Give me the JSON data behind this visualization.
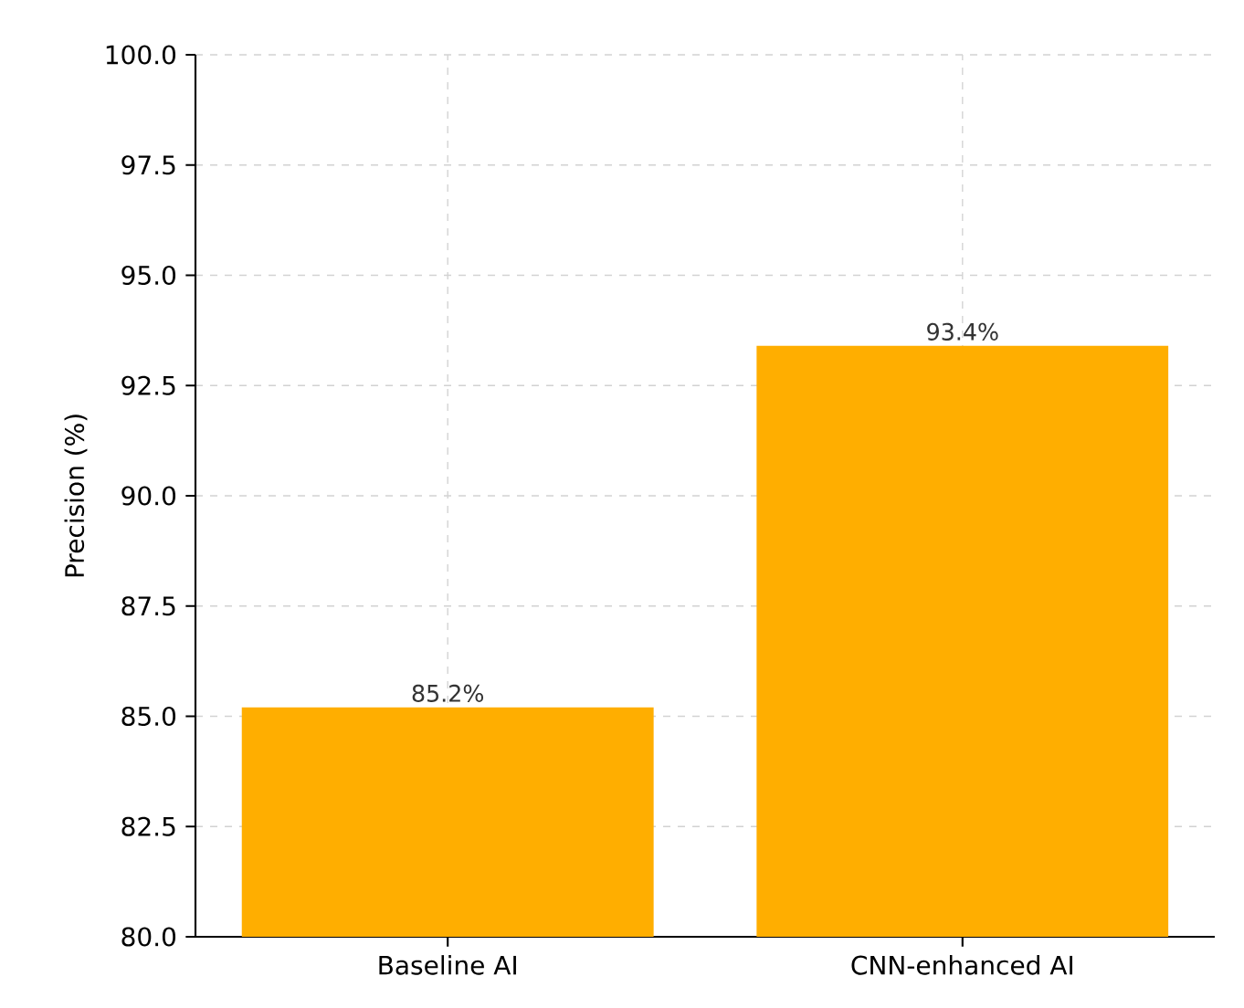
{
  "chart_data": {
    "type": "bar",
    "ylabel": "Precision (%)",
    "categories": [
      "Baseline AI",
      "CNN-enhanced AI"
    ],
    "values": [
      85.2,
      93.4
    ],
    "color": "#ffae00",
    "value_labels": [
      "85.2%",
      "93.4%"
    ],
    "ylim": [
      80,
      100
    ],
    "yticks": [
      {
        "value": 80,
        "label": "80.0"
      },
      {
        "value": 82.5,
        "label": "82.5"
      },
      {
        "value": 85,
        "label": "85.0"
      },
      {
        "value": 87.5,
        "label": "87.5"
      },
      {
        "value": 90,
        "label": "90.0"
      },
      {
        "value": 92.5,
        "label": "92.5"
      },
      {
        "value": 95,
        "label": "95.0"
      },
      {
        "value": 97.5,
        "label": "97.5"
      },
      {
        "value": 100,
        "label": "100.0"
      }
    ],
    "grid": true
  }
}
